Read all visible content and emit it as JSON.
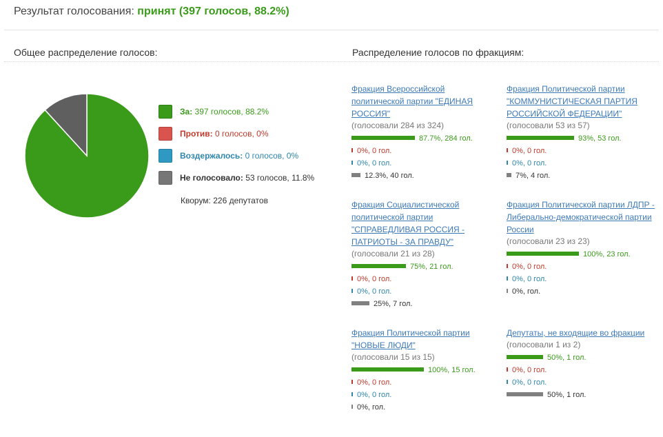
{
  "header": {
    "label": "Результат голосования:",
    "result": "принят (397 голосов, 88.2%)"
  },
  "sections": {
    "overall": "Общее распределение голосов:",
    "factions": "Распределение голосов по фракциям:"
  },
  "colors": {
    "for": "#3a9b1a",
    "against": "#c0392b",
    "abstained": "#2e86ab",
    "not_voted": "#666666",
    "link": "#3d7ab8"
  },
  "legend": [
    {
      "key": "for",
      "label": "За:",
      "text": " 397 голосов, 88.2%",
      "color": "#3a9b1a"
    },
    {
      "key": "against",
      "label": "Против:",
      "text": " 0 голосов, 0%",
      "color": "#d9534f"
    },
    {
      "key": "abstained",
      "label": "Воздержалось:",
      "text": " 0 голосов, 0%",
      "color": "#2e9ac4"
    },
    {
      "key": "not_voted",
      "label": "Не голосовало:",
      "text": " 53 голосов, 11.8%",
      "color": "#777777"
    }
  ],
  "quorum": "Кворум: 226 депутатов",
  "chart_data": {
    "type": "pie",
    "slices": [
      {
        "name": "За",
        "value": 397,
        "percent": 88.2,
        "color": "#3a9b1a"
      },
      {
        "name": "Против",
        "value": 0,
        "percent": 0,
        "color": "#d9534f"
      },
      {
        "name": "Воздержалось",
        "value": 0,
        "percent": 0,
        "color": "#2e9ac4"
      },
      {
        "name": "Не голосовало",
        "value": 53,
        "percent": 11.8,
        "color": "#5f5f5f"
      }
    ],
    "factions": [
      {
        "name": "Фракция Всероссийской политической партии \"ЕДИНАЯ РОССИЯ\"",
        "voted": "(голосовали 284 из 324)",
        "rows": [
          {
            "type": "for",
            "pct": 87.7,
            "label": "87.7%, 284 гол."
          },
          {
            "type": "against",
            "pct": 0,
            "label": "0%, 0 гол."
          },
          {
            "type": "abstained",
            "pct": 0,
            "label": "0%, 0 гол."
          },
          {
            "type": "none",
            "pct": 12.3,
            "label": "12.3%, 40 гол."
          }
        ]
      },
      {
        "name": "Фракция Политической партии \"КОММУНИСТИЧЕСКАЯ ПАРТИЯ РОССИЙСКОЙ ФЕДЕРАЦИИ\"",
        "voted": "(голосовали 53 из 57)",
        "rows": [
          {
            "type": "for",
            "pct": 93,
            "label": "93%, 53 гол."
          },
          {
            "type": "against",
            "pct": 0,
            "label": "0%, 0 гол."
          },
          {
            "type": "abstained",
            "pct": 0,
            "label": "0%, 0 гол."
          },
          {
            "type": "none",
            "pct": 7,
            "label": "7%, 4 гол."
          }
        ]
      },
      {
        "name": "Фракция Социалистической политической партии \"СПРАВЕДЛИВАЯ РОССИЯ - ПАТРИОТЫ - ЗА ПРАВДУ\"",
        "voted": "(голосовали 21 из 28)",
        "rows": [
          {
            "type": "for",
            "pct": 75,
            "label": "75%, 21 гол."
          },
          {
            "type": "against",
            "pct": 0,
            "label": "0%, 0 гол."
          },
          {
            "type": "abstained",
            "pct": 0,
            "label": "0%, 0 гол."
          },
          {
            "type": "none",
            "pct": 25,
            "label": "25%, 7 гол."
          }
        ]
      },
      {
        "name": "Фракция Политической партии ЛДПР - Либерально-демократической партии России",
        "voted": "(голосовали 23 из 23)",
        "rows": [
          {
            "type": "for",
            "pct": 100,
            "label": "100%, 23 гол."
          },
          {
            "type": "against",
            "pct": 0,
            "label": "0%, 0 гол."
          },
          {
            "type": "abstained",
            "pct": 0,
            "label": "0%, 0 гол."
          },
          {
            "type": "none",
            "pct": 0,
            "label": "0%, гол."
          }
        ]
      },
      {
        "name": "Фракция Политической партии \"НОВЫЕ ЛЮДИ\"",
        "voted": "(голосовали 15 из 15)",
        "rows": [
          {
            "type": "for",
            "pct": 100,
            "label": "100%, 15 гол."
          },
          {
            "type": "against",
            "pct": 0,
            "label": "0%, 0 гол."
          },
          {
            "type": "abstained",
            "pct": 0,
            "label": "0%, 0 гол."
          },
          {
            "type": "none",
            "pct": 0,
            "label": "0%, гол."
          }
        ]
      },
      {
        "name": "Депутаты, не входящие во фракции",
        "voted": "(голосовали 1 из 2)",
        "rows": [
          {
            "type": "for",
            "pct": 50,
            "label": "50%, 1 гол."
          },
          {
            "type": "against",
            "pct": 0,
            "label": "0%, 0 гол."
          },
          {
            "type": "abstained",
            "pct": 0,
            "label": "0%, 0 гол."
          },
          {
            "type": "none",
            "pct": 50,
            "label": "50%, 1 гол."
          }
        ]
      }
    ]
  }
}
